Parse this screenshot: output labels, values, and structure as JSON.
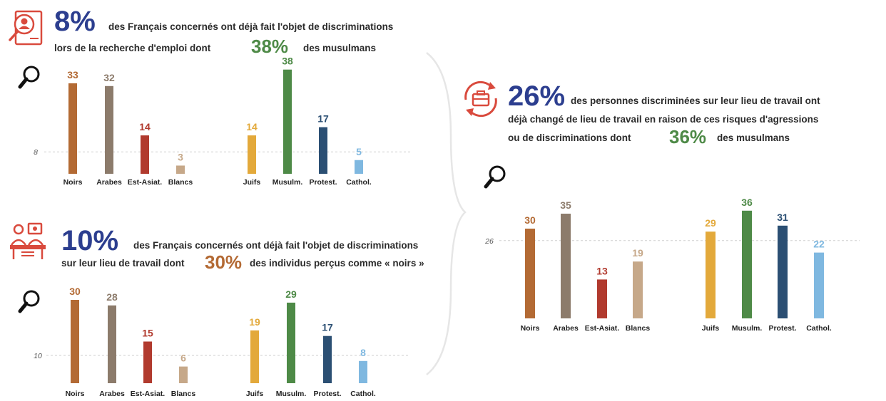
{
  "colors": {
    "headline_blue": "#2c3e8f",
    "green": "#4e8a47",
    "orange": "#b36a34",
    "icon_red": "#d94a3d",
    "Noirs": "#b36a34",
    "Arabes": "#8c7b6b",
    "Est-Asiat.": "#b13a2e",
    "Blancs": "#c6a889",
    "Juifs": "#e3a93b",
    "Musulm.": "#4e8a47",
    "Protest.": "#2b4f73",
    "Cathol.": "#7fb8e0"
  },
  "icons": [
    "search-person-icon",
    "briefcase-cycle-icon",
    "office-workers-icon",
    "magnifier-icon"
  ],
  "block1": {
    "big": "8%",
    "line1": "des Français concernés ont déjà fait l'objet de discriminations",
    "line2": "lors de la recherche d'emploi dont",
    "pct": "38%",
    "tail": "des musulmans"
  },
  "block2": {
    "big": "10%",
    "line1": "des Français concernés ont déjà fait l'objet de discriminations",
    "line2": "sur leur lieu de travail dont",
    "pct": "30%",
    "tail": "des individus perçus comme « noirs »"
  },
  "block3": {
    "big": "26%",
    "line1": "des personnes discriminées sur leur lieu de travail ont",
    "line2": "déjà changé de lieu de travail en raison de ces risques d'agressions",
    "line3": "ou de discriminations dont",
    "pct": "36%",
    "tail": "des musulmans"
  },
  "chart_data": [
    {
      "type": "bar",
      "title": "",
      "categories": [
        "Noirs",
        "Arabes",
        "Est-Asiat.",
        "Blancs",
        "Juifs",
        "Musulm.",
        "Protest.",
        "Cathol."
      ],
      "values": [
        33,
        32,
        14,
        3,
        14,
        38,
        17,
        5
      ],
      "reference_line": 8,
      "ylim": [
        0,
        40
      ]
    },
    {
      "type": "bar",
      "title": "",
      "categories": [
        "Noirs",
        "Arabes",
        "Est-Asiat.",
        "Blancs",
        "Juifs",
        "Musulm.",
        "Protest.",
        "Cathol."
      ],
      "values": [
        30,
        28,
        15,
        6,
        19,
        29,
        17,
        8
      ],
      "reference_line": 10,
      "ylim": [
        0,
        31
      ]
    },
    {
      "type": "bar",
      "title": "",
      "categories": [
        "Noirs",
        "Arabes",
        "Est-Asiat.",
        "Blancs",
        "Juifs",
        "Musulm.",
        "Protest.",
        "Cathol."
      ],
      "values": [
        30,
        35,
        13,
        19,
        29,
        36,
        31,
        22
      ],
      "reference_line": 26,
      "ylim": [
        0,
        40
      ]
    }
  ]
}
